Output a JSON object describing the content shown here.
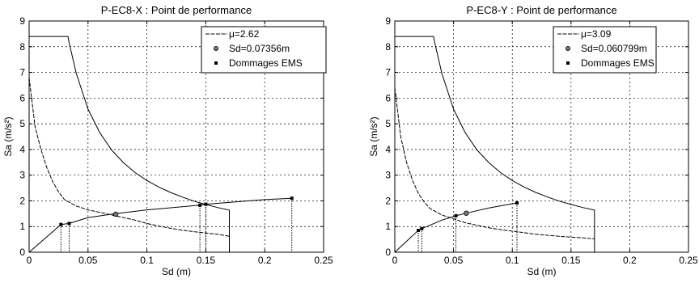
{
  "chart_data": [
    {
      "type": "line",
      "title": "P-EC8-X : Point de performance",
      "xlabel": "Sd (m)",
      "ylabel": "Sa (m/s²)",
      "xlim": [
        0,
        0.25
      ],
      "ylim": [
        0,
        9
      ],
      "xticks": [
        0,
        0.05,
        0.1,
        0.15,
        0.2,
        0.25
      ],
      "xtick_labels": [
        "0",
        "0.05",
        "0.1",
        "0.15",
        "0.2",
        "0.25"
      ],
      "yticks": [
        0,
        1,
        2,
        3,
        4,
        5,
        6,
        7,
        8,
        9
      ],
      "ytick_labels": [
        "0",
        "1",
        "2",
        "3",
        "4",
        "5",
        "6",
        "7",
        "8",
        "9"
      ],
      "grid": "dashed",
      "legend_placement": "top-right",
      "legend": [
        "μ=2.62",
        "Sd=0.07356m",
        "Dommages EMS"
      ],
      "demand_spectrum": {
        "x": [
          0,
          0.033,
          0.034,
          0.04,
          0.05,
          0.06,
          0.07,
          0.08,
          0.09,
          0.1,
          0.11,
          0.12,
          0.13,
          0.14,
          0.15,
          0.16,
          0.17,
          0.17
        ],
        "y": [
          8.4,
          8.4,
          8.15,
          6.97,
          5.57,
          4.65,
          3.98,
          3.49,
          3.1,
          2.79,
          2.54,
          2.33,
          2.15,
          1.99,
          1.86,
          1.74,
          1.64,
          0
        ]
      },
      "reduced_spectrum": {
        "x": [
          0,
          0.005,
          0.01,
          0.015,
          0.02,
          0.025,
          0.03,
          0.04,
          0.05,
          0.06,
          0.07,
          0.08,
          0.09,
          0.1,
          0.11,
          0.12,
          0.13,
          0.14,
          0.15,
          0.16,
          0.17
        ],
        "y": [
          6.8,
          4.9,
          4.0,
          3.3,
          2.75,
          2.35,
          2.05,
          1.8,
          1.65,
          1.55,
          1.45,
          1.35,
          1.25,
          1.12,
          1.02,
          0.93,
          0.86,
          0.8,
          0.75,
          0.7,
          0.62
        ]
      },
      "capacity_curve": {
        "x": [
          0,
          0.027,
          0.034,
          0.05,
          0.07356,
          0.1,
          0.145,
          0.15,
          0.2,
          0.223
        ],
        "y": [
          0,
          1.08,
          1.12,
          1.35,
          1.5,
          1.65,
          1.83,
          1.87,
          2.05,
          2.1
        ]
      },
      "performance_point": {
        "x": 0.07356,
        "y": 1.48
      },
      "damage_points": {
        "x": [
          0.027,
          0.034,
          0.145,
          0.15,
          0.223
        ],
        "y": [
          1.08,
          1.12,
          1.83,
          1.87,
          2.1
        ]
      }
    },
    {
      "type": "line",
      "title": "P-EC8-Y : Point de performance",
      "xlabel": "Sd (m)",
      "ylabel": "Sa (m/s²)",
      "xlim": [
        0,
        0.25
      ],
      "ylim": [
        0,
        9
      ],
      "xticks": [
        0,
        0.05,
        0.1,
        0.15,
        0.2,
        0.25
      ],
      "xtick_labels": [
        "0",
        "0.05",
        "0.1",
        "0.15",
        "0.2",
        "0.25"
      ],
      "yticks": [
        0,
        1,
        2,
        3,
        4,
        5,
        6,
        7,
        8,
        9
      ],
      "ytick_labels": [
        "0",
        "1",
        "2",
        "3",
        "4",
        "5",
        "6",
        "7",
        "8",
        "9"
      ],
      "grid": "dashed",
      "legend_placement": "top-right",
      "legend": [
        "μ=3.09",
        "Sd=0.060799m",
        "Dommages EMS"
      ],
      "demand_spectrum": {
        "x": [
          0,
          0.033,
          0.034,
          0.04,
          0.05,
          0.06,
          0.07,
          0.08,
          0.09,
          0.1,
          0.11,
          0.12,
          0.13,
          0.14,
          0.15,
          0.16,
          0.17,
          0.17
        ],
        "y": [
          8.4,
          8.4,
          8.15,
          6.97,
          5.57,
          4.65,
          3.98,
          3.49,
          3.1,
          2.79,
          2.54,
          2.33,
          2.15,
          1.99,
          1.86,
          1.74,
          1.64,
          0
        ]
      },
      "reduced_spectrum": {
        "x": [
          0,
          0.005,
          0.01,
          0.015,
          0.02,
          0.025,
          0.03,
          0.04,
          0.05,
          0.06,
          0.07,
          0.08,
          0.09,
          0.1,
          0.11,
          0.12,
          0.13,
          0.14,
          0.15,
          0.16,
          0.17
        ],
        "y": [
          6.4,
          4.5,
          3.5,
          2.8,
          2.3,
          1.95,
          1.7,
          1.45,
          1.3,
          1.15,
          1.05,
          0.95,
          0.88,
          0.82,
          0.76,
          0.7,
          0.66,
          0.62,
          0.59,
          0.56,
          0.52
        ]
      },
      "capacity_curve": {
        "x": [
          0,
          0.02,
          0.023,
          0.04,
          0.052,
          0.060799,
          0.08,
          0.104
        ],
        "y": [
          0,
          0.85,
          0.92,
          1.25,
          1.42,
          1.52,
          1.72,
          1.92
        ]
      },
      "performance_point": {
        "x": 0.060799,
        "y": 1.52
      },
      "damage_points": {
        "x": [
          0.02,
          0.023,
          0.052,
          0.104
        ],
        "y": [
          0.85,
          0.92,
          1.42,
          1.92
        ]
      }
    }
  ]
}
